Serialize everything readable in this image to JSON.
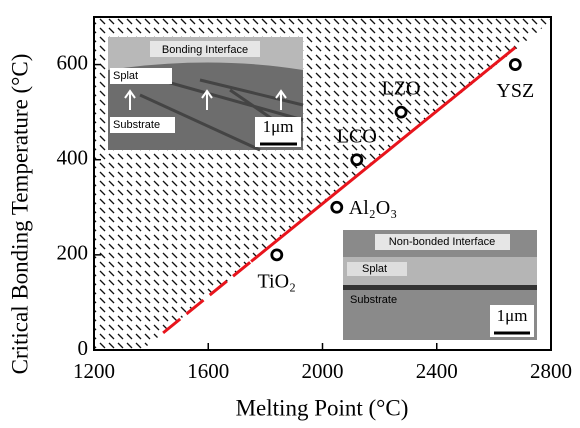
{
  "chart_data": {
    "type": "scatter",
    "x_label": "Melting Point (°C)",
    "y_label": "Critical Bonding Temperature (°C)",
    "xlim": [
      1200,
      2800
    ],
    "xticks": [
      1200,
      1600,
      2000,
      2400,
      2800
    ],
    "ylim": [
      0,
      700
    ],
    "yticks": [
      0,
      200,
      400,
      600
    ],
    "x": [
      1840,
      2050,
      2120,
      2275,
      2675
    ],
    "values": [
      200,
      300,
      400,
      500,
      600
    ],
    "point_labels": [
      "TiO₂",
      "Al₂O₃",
      "LCO",
      "LZO",
      "YSZ"
    ],
    "marker_color": "#000000",
    "lines": [
      {
        "color": "#e8141c",
        "dashed": true,
        "x": [
          1442,
          1750
        ],
        "values": [
          36,
          186
        ]
      },
      {
        "color": "#e8141c",
        "dashed": false,
        "x": [
          1750,
          2675
        ],
        "values": [
          186,
          636
        ]
      }
    ],
    "insets": [
      {
        "title": "Bonding Interface",
        "upper": "Splat",
        "lower": "Substrate",
        "scale": "1μm"
      },
      {
        "title": "Non-bonded Interface",
        "upper": "Splat",
        "lower": "Substrate",
        "scale": "1μm"
      }
    ]
  }
}
